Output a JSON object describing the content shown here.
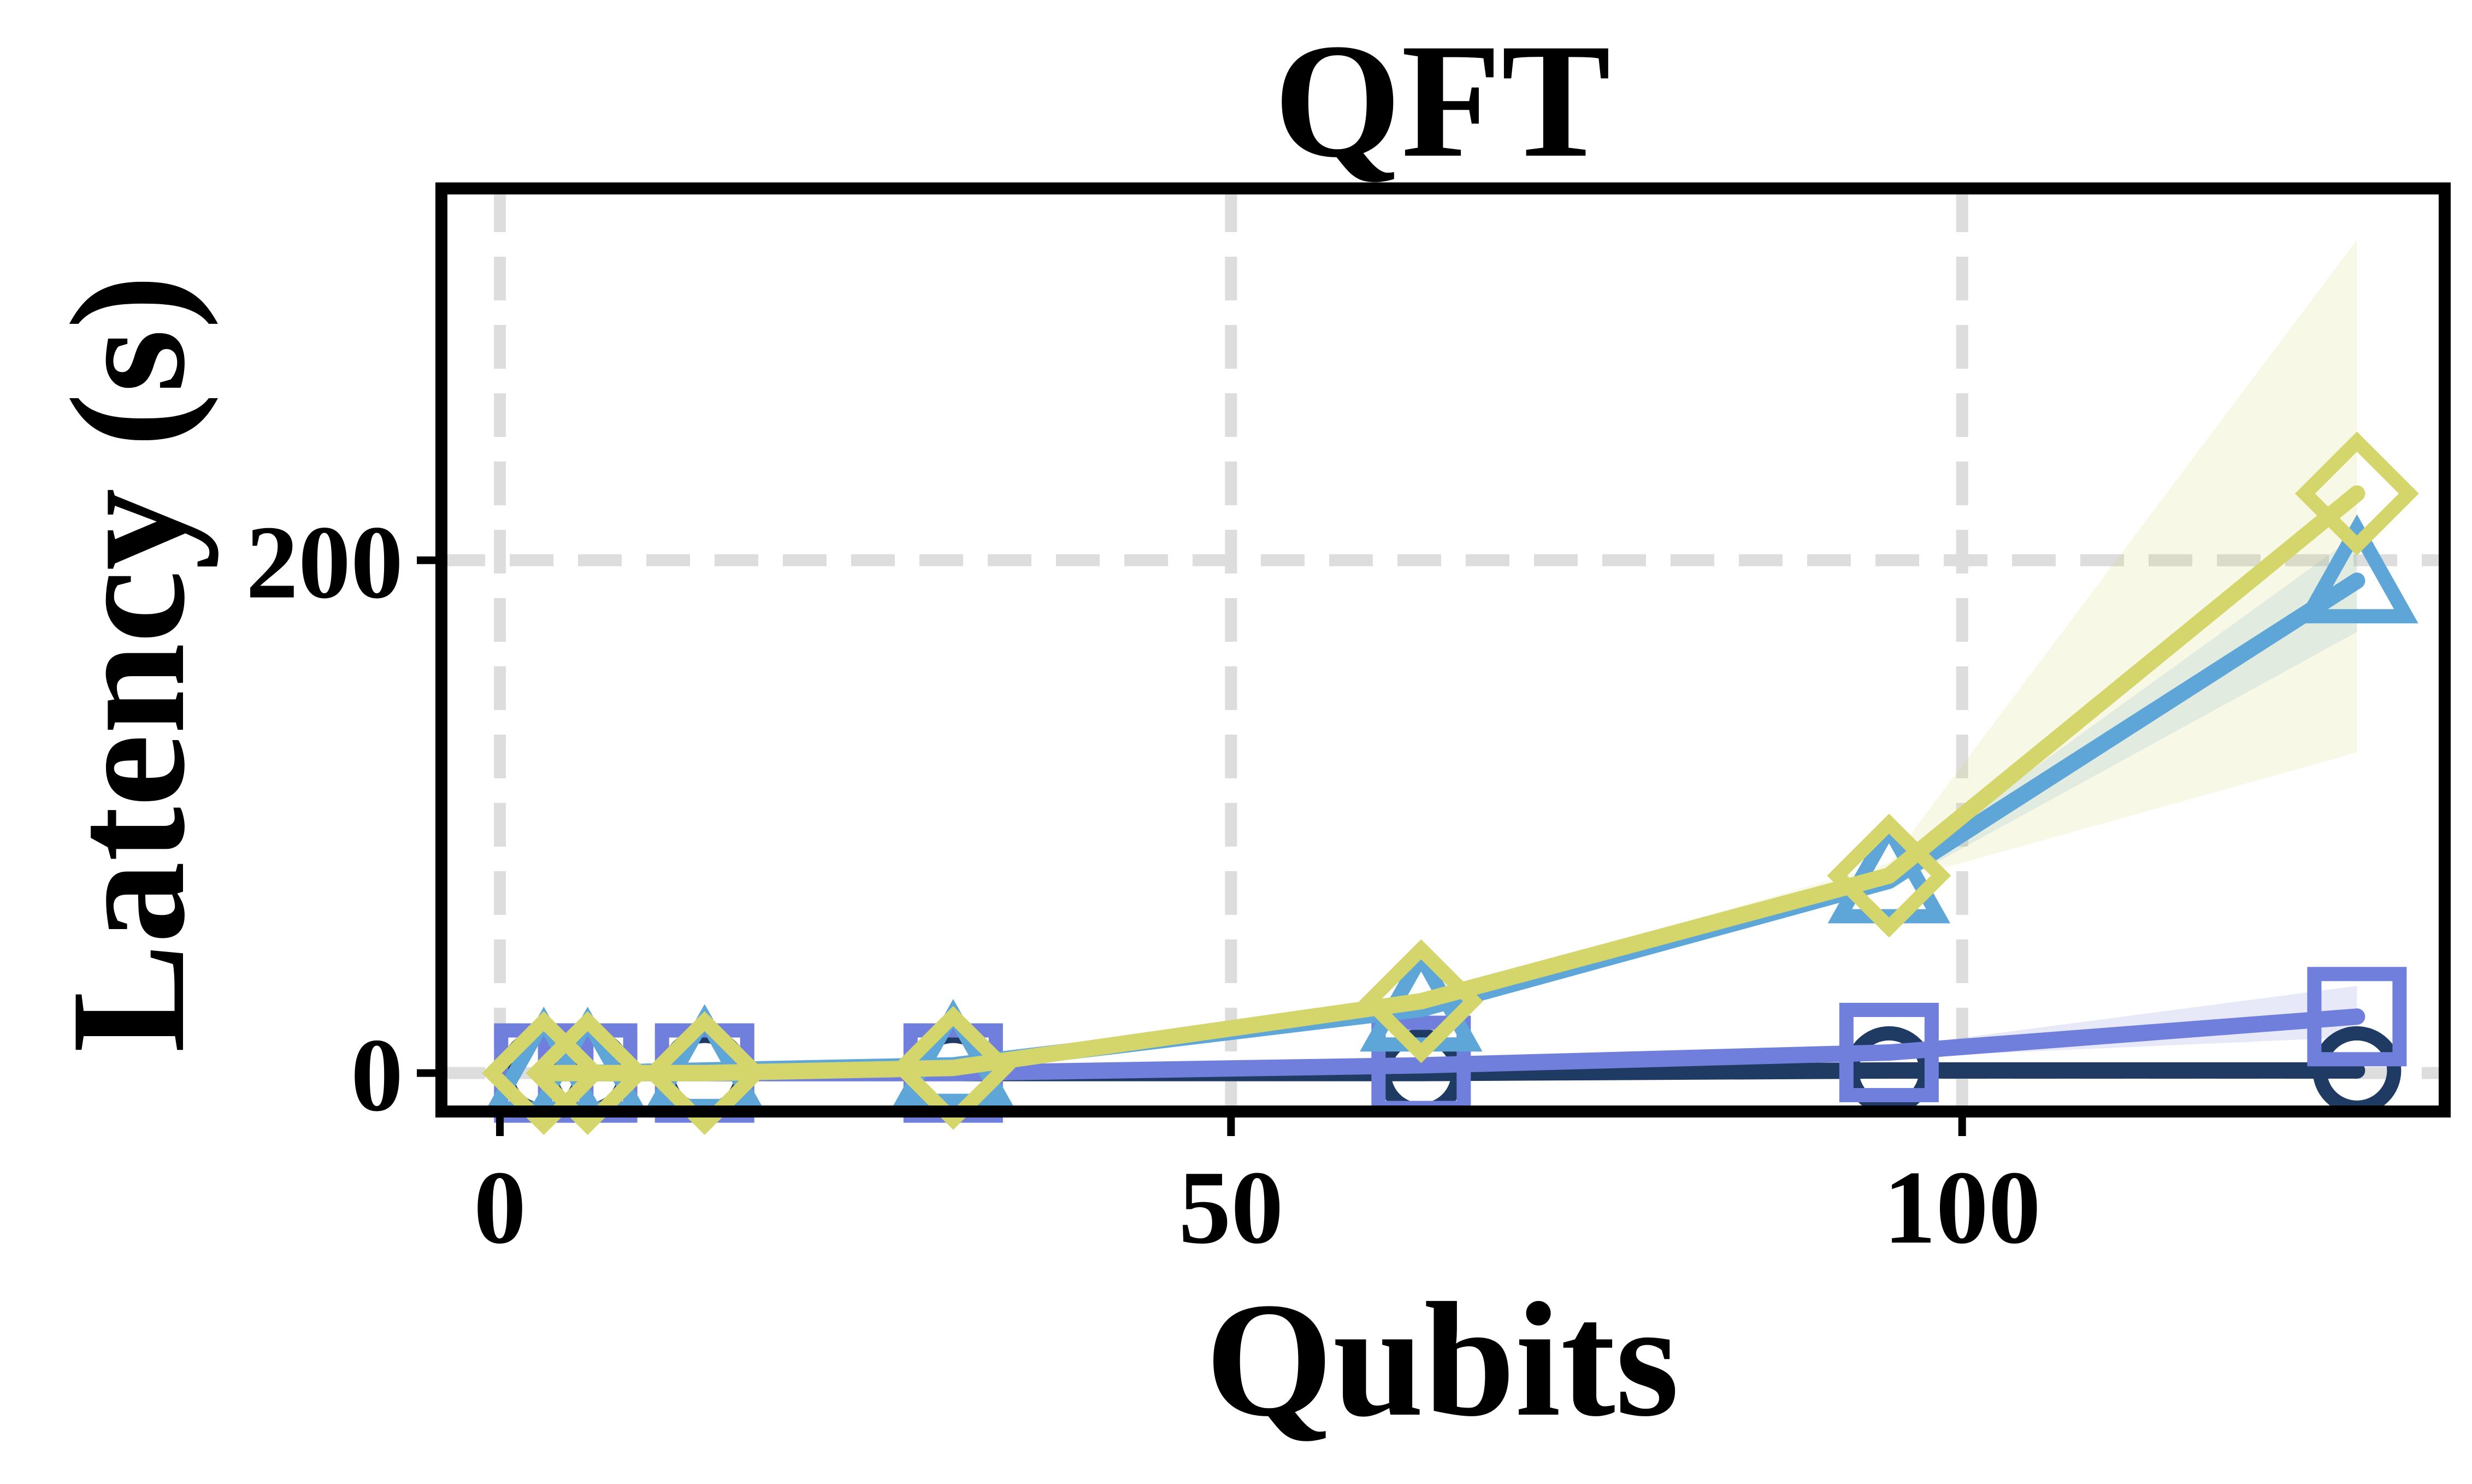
{
  "chart_data": {
    "type": "line",
    "title": "QFT",
    "xlabel": "Qubits",
    "ylabel": "Latency (s)",
    "xlim": [
      -4,
      133
    ],
    "ylim": [
      -15,
      345
    ],
    "xticks": [
      0,
      50,
      100
    ],
    "yticks": [
      0,
      200
    ],
    "grid": true,
    "legend": "none",
    "series": [
      {
        "marker": "circle",
        "color": "#1f3b63",
        "x": [
          3,
          6,
          14,
          31,
          63,
          95,
          127
        ],
        "y": [
          0,
          0,
          0,
          0,
          0,
          1,
          1
        ]
      },
      {
        "marker": "square",
        "color": "#6f7fdb",
        "x": [
          3,
          6,
          14,
          31,
          63,
          95,
          127
        ],
        "y": [
          0,
          0,
          0,
          0,
          3,
          8,
          22
        ],
        "band_low": [
          0,
          0,
          0,
          0,
          2,
          6,
          14
        ],
        "band_high": [
          0,
          0,
          0,
          0,
          4,
          10,
          34
        ]
      },
      {
        "marker": "triangle",
        "color": "#5ea5d8",
        "x": [
          3,
          6,
          14,
          31,
          63,
          95,
          127
        ],
        "y": [
          0,
          0,
          1,
          3,
          25,
          75,
          192
        ],
        "band_low": [
          0,
          0,
          1,
          3,
          24,
          72,
          172
        ],
        "band_high": [
          0,
          0,
          1,
          3,
          26,
          78,
          210
        ]
      },
      {
        "marker": "diamond",
        "color": "#d4d66b",
        "x": [
          3,
          6,
          14,
          31,
          63,
          95,
          127
        ],
        "y": [
          0,
          0,
          0,
          2,
          28,
          77,
          226
        ],
        "band_low": [
          0,
          0,
          0,
          2,
          27,
          74,
          125
        ],
        "band_high": [
          0,
          0,
          0,
          2,
          29,
          82,
          325
        ]
      }
    ]
  }
}
